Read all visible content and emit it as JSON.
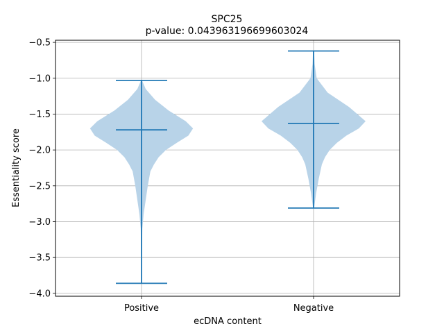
{
  "chart_data": {
    "type": "violin",
    "title": "SPC25",
    "subtitle": "p-value: 0.043963196699603024",
    "xlabel": "ecDNA content",
    "ylabel": "Essentiality score",
    "categories": [
      "Positive",
      "Negative"
    ],
    "ylim": [
      -4.04,
      -0.47
    ],
    "yticks": [
      -0.5,
      -1.0,
      -1.5,
      -2.0,
      -2.5,
      -3.0,
      -3.5,
      -4.0
    ],
    "ytick_labels": [
      "−0.5",
      "−1.0",
      "−1.5",
      "−2.0",
      "−2.5",
      "−3.0",
      "−3.5",
      "−4.0"
    ],
    "grid": true,
    "colors": {
      "body": "#b8d3e8",
      "lines": "#1f77b4",
      "grid": "#b0b0b0"
    },
    "violins": [
      {
        "category": "Positive",
        "max": -1.03,
        "median": -1.72,
        "min": -3.86,
        "profile": [
          [
            -1.03,
            0.01
          ],
          [
            -1.15,
            0.08
          ],
          [
            -1.3,
            0.26
          ],
          [
            -1.45,
            0.52
          ],
          [
            -1.6,
            0.85
          ],
          [
            -1.7,
            0.99
          ],
          [
            -1.8,
            0.9
          ],
          [
            -1.9,
            0.68
          ],
          [
            -2.0,
            0.47
          ],
          [
            -2.1,
            0.33
          ],
          [
            -2.2,
            0.24
          ],
          [
            -2.3,
            0.17
          ],
          [
            -2.5,
            0.12
          ],
          [
            -2.7,
            0.08
          ],
          [
            -2.9,
            0.04
          ],
          [
            -3.1,
            0.015
          ],
          [
            -3.5,
            0.008
          ],
          [
            -3.86,
            0.004
          ]
        ]
      },
      {
        "category": "Negative",
        "max": -0.62,
        "median": -1.63,
        "min": -2.81,
        "profile": [
          [
            -0.62,
            0.01
          ],
          [
            -0.8,
            0.02
          ],
          [
            -1.0,
            0.06
          ],
          [
            -1.2,
            0.27
          ],
          [
            -1.4,
            0.68
          ],
          [
            -1.6,
            1.0
          ],
          [
            -1.7,
            0.87
          ],
          [
            -1.8,
            0.63
          ],
          [
            -1.9,
            0.45
          ],
          [
            -2.0,
            0.31
          ],
          [
            -2.1,
            0.22
          ],
          [
            -2.2,
            0.16
          ],
          [
            -2.4,
            0.1
          ],
          [
            -2.6,
            0.05
          ],
          [
            -2.81,
            0.01
          ]
        ]
      }
    ]
  }
}
